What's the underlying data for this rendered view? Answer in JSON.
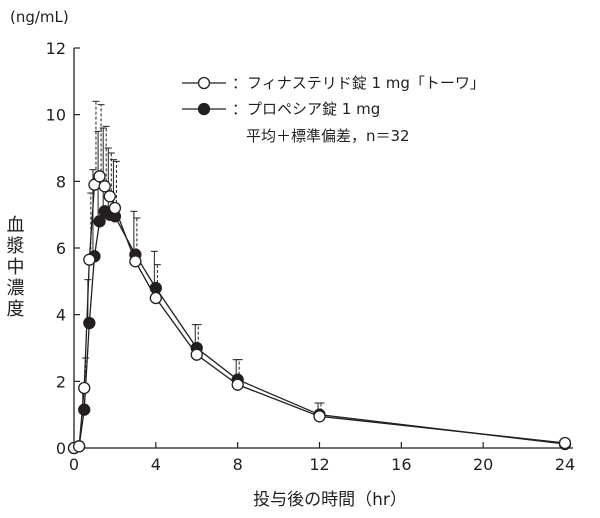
{
  "chart_data": {
    "type": "line",
    "title": "",
    "xlabel": "投与後の時間（hr）",
    "ylabel": "血漿中濃度",
    "y_unit": "(ng/mL)",
    "xlim": [
      0,
      24
    ],
    "ylim": [
      0,
      12
    ],
    "x_ticks": [
      0,
      4,
      8,
      12,
      16,
      20,
      24
    ],
    "y_ticks": [
      0,
      2,
      4,
      6,
      8,
      10,
      12
    ],
    "grid": false,
    "legend_position": "top-right",
    "legend_note": "平均＋標準偏差，n＝32",
    "series": [
      {
        "name": "：フィナステリド錠 1 mg「トーワ」",
        "marker": "open-circle",
        "line_style": "solid",
        "error_style": "dashed",
        "x": [
          0,
          0.25,
          0.5,
          0.75,
          1,
          1.25,
          1.5,
          1.75,
          2,
          3,
          4,
          6,
          8,
          12,
          24
        ],
        "y": [
          0.0,
          0.05,
          1.8,
          5.65,
          7.9,
          8.15,
          7.85,
          7.55,
          7.2,
          5.6,
          4.5,
          2.8,
          1.9,
          0.95,
          0.15
        ],
        "y_err": [
          0,
          0,
          0.9,
          2.0,
          2.5,
          2.15,
          1.8,
          1.3,
          1.4,
          1.3,
          1.0,
          0.9,
          0.75,
          0.4,
          0
        ]
      },
      {
        "name": "：プロペシア錠 1 mg",
        "marker": "filled-circle",
        "line_style": "solid",
        "error_style": "solid",
        "x": [
          0,
          0.25,
          0.5,
          0.75,
          1,
          1.25,
          1.5,
          1.75,
          2,
          3,
          4,
          6,
          8,
          12,
          24
        ],
        "y": [
          0.0,
          0.05,
          1.15,
          3.75,
          5.75,
          6.8,
          7.1,
          7.0,
          6.95,
          5.8,
          4.8,
          3.0,
          2.05,
          1.0,
          0.12
        ],
        "y_err": [
          0,
          0,
          0.6,
          1.3,
          2.6,
          2.7,
          2.5,
          2.0,
          1.7,
          1.3,
          1.1,
          0.7,
          0.6,
          0.35,
          0
        ]
      }
    ]
  }
}
